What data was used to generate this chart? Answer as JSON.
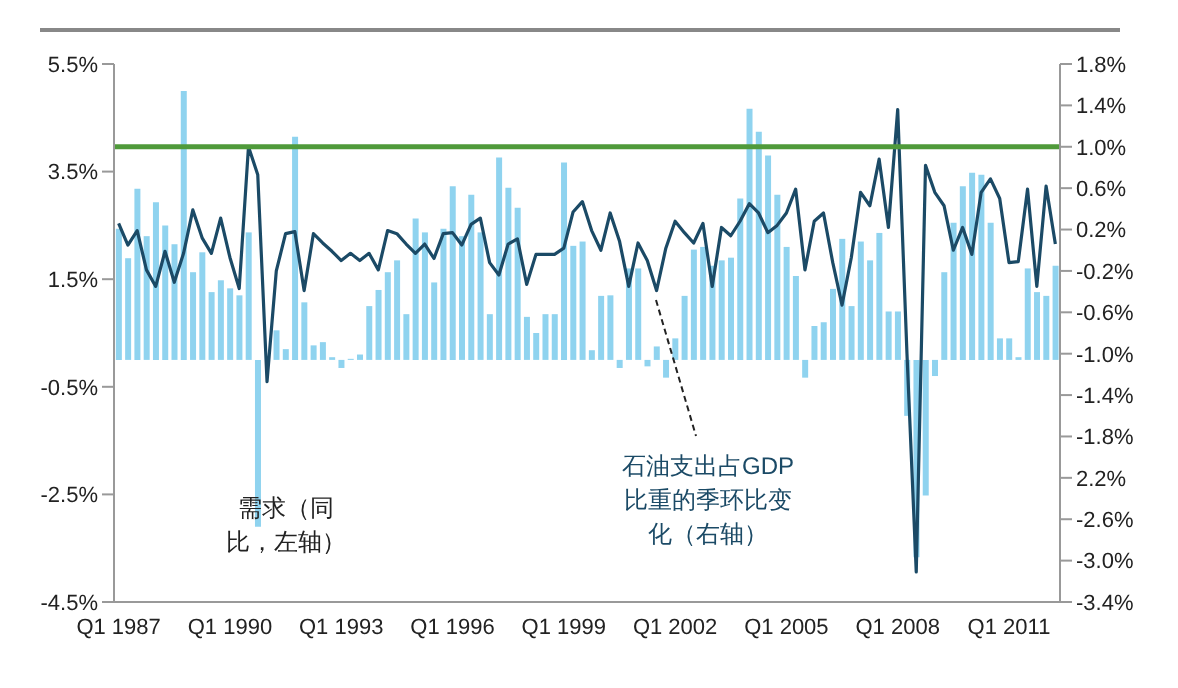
{
  "chart_data": {
    "type": "bar",
    "categories": [
      "Q1 1987",
      null,
      null,
      null,
      null,
      null,
      null,
      null,
      null,
      null,
      null,
      null,
      "Q1 1990",
      null,
      null,
      null,
      null,
      null,
      null,
      null,
      null,
      null,
      null,
      null,
      "Q1 1993",
      null,
      null,
      null,
      null,
      null,
      null,
      null,
      null,
      null,
      null,
      null,
      "Q1 1996",
      null,
      null,
      null,
      null,
      null,
      null,
      null,
      null,
      null,
      null,
      null,
      "Q1 1999",
      null,
      null,
      null,
      null,
      null,
      null,
      null,
      null,
      null,
      null,
      null,
      "Q1 2002",
      null,
      null,
      null,
      null,
      null,
      null,
      null,
      null,
      null,
      null,
      null,
      "Q1 2005",
      null,
      null,
      null,
      null,
      null,
      null,
      null,
      null,
      null,
      null,
      null,
      "Q1 2008",
      null,
      null,
      null,
      null,
      null,
      null,
      null,
      null,
      null,
      null,
      null,
      "Q1 2011",
      null,
      null,
      null,
      null,
      null
    ],
    "series": [
      {
        "name": "需求（同比，左轴）",
        "color": "#8fd3ef",
        "values": [
          2.44,
          1.89,
          3.18,
          2.3,
          2.93,
          2.5,
          2.15,
          5.0,
          1.63,
          2.0,
          1.26,
          1.48,
          1.33,
          1.2,
          2.37,
          -3.1,
          null,
          0.55,
          0.2,
          4.15,
          1.07,
          0.27,
          0.33,
          0.05,
          -0.15,
          0.02,
          0.1,
          1.0,
          1.3,
          1.63,
          1.85,
          0.85,
          2.63,
          2.37,
          1.44,
          2.44,
          3.23,
          2.3,
          3.07,
          2.37,
          0.85,
          3.76,
          3.2,
          2.83,
          0.8,
          0.5,
          0.85,
          0.85,
          3.67,
          2.12,
          2.2,
          0.18,
          1.19,
          1.2,
          -0.15,
          1.7,
          1.7,
          -0.12,
          0.25,
          -0.33,
          0.4,
          1.19,
          2.05,
          2.1,
          1.75,
          1.85,
          1.9,
          3.0,
          4.67,
          4.24,
          3.8,
          3.07,
          2.1,
          1.56,
          -0.33,
          0.63,
          0.7,
          1.32,
          2.25,
          1.0,
          2.2,
          1.85,
          2.36,
          0.9,
          0.9,
          -1.04,
          -3.67,
          -2.52,
          -0.3,
          1.63,
          2.55,
          3.23,
          3.48,
          3.44,
          2.55,
          0.4,
          0.4,
          0.05,
          1.7,
          1.26,
          1.19,
          1.75
        ]
      },
      {
        "name": "石油支出占GDP比重的季环比变化（右轴）",
        "type": "line",
        "axis": "y2",
        "color": "#1b4a66",
        "values": [
          0.26,
          0.05,
          0.19,
          -0.19,
          -0.35,
          -0.01,
          -0.31,
          -0.03,
          0.39,
          0.12,
          -0.03,
          0.31,
          -0.07,
          -0.37,
          1.0,
          0.73,
          -1.27,
          -0.2,
          0.16,
          0.18,
          -0.39,
          0.16,
          0.07,
          -0.01,
          -0.1,
          -0.03,
          -0.1,
          -0.03,
          -0.19,
          0.19,
          0.16,
          0.06,
          -0.03,
          0.06,
          -0.08,
          0.16,
          0.17,
          0.05,
          0.25,
          0.31,
          -0.12,
          -0.24,
          0.06,
          0.11,
          -0.33,
          -0.04,
          -0.04,
          -0.04,
          0.02,
          0.37,
          0.47,
          0.19,
          0.0,
          0.36,
          0.09,
          -0.35,
          0.07,
          -0.1,
          -0.39,
          0.02,
          0.28,
          0.17,
          0.07,
          0.26,
          -0.35,
          0.22,
          0.14,
          0.28,
          0.45,
          0.36,
          0.17,
          0.24,
          0.36,
          0.59,
          -0.19,
          0.28,
          0.36,
          -0.12,
          -0.53,
          -0.07,
          0.56,
          0.43,
          0.88,
          0.22,
          1.36,
          -1.0,
          -3.11,
          0.82,
          0.56,
          0.43,
          0.0,
          0.22,
          -0.04,
          0.56,
          0.69,
          0.5,
          -0.12,
          -0.11,
          0.59,
          -0.35,
          0.62,
          0.06
        ]
      }
    ],
    "ylim": [
      -4.5,
      5.5
    ],
    "yticks": [
      {
        "value": -4.5,
        "label": "-4.5%"
      },
      {
        "value": -2.5,
        "label": "-2.5%"
      },
      {
        "value": -0.5,
        "label": "-0.5%"
      },
      {
        "value": 1.5,
        "label": "1.5%"
      },
      {
        "value": 3.5,
        "label": "3.5%"
      },
      {
        "value": 5.5,
        "label": "5.5%"
      }
    ],
    "y2lim": [
      -3.4,
      1.8
    ],
    "y2ticks": [
      {
        "value": -3.4,
        "label": "-3.4%"
      },
      {
        "value": -3.0,
        "label": "-3.0%"
      },
      {
        "value": -2.6,
        "label": "-2.6%"
      },
      {
        "value": -2.2,
        "label": "2.2%"
      },
      {
        "value": -1.8,
        "label": "-1.8%"
      },
      {
        "value": -1.4,
        "label": "-1.4%"
      },
      {
        "value": -1.0,
        "label": "-1.0%"
      },
      {
        "value": -0.6,
        "label": "-0.6%"
      },
      {
        "value": -0.2,
        "label": "-0.2%"
      },
      {
        "value": 0.2,
        "label": "0.2%"
      },
      {
        "value": 0.6,
        "label": "0.6%"
      },
      {
        "value": 1.0,
        "label": "1.0%"
      },
      {
        "value": 1.4,
        "label": "1.4%"
      },
      {
        "value": 1.8,
        "label": "1.8%"
      }
    ],
    "ref_lines": [
      {
        "axis": "y2",
        "value": 1.0,
        "color": "#4f9a3a"
      }
    ],
    "marker": "none"
  }
}
